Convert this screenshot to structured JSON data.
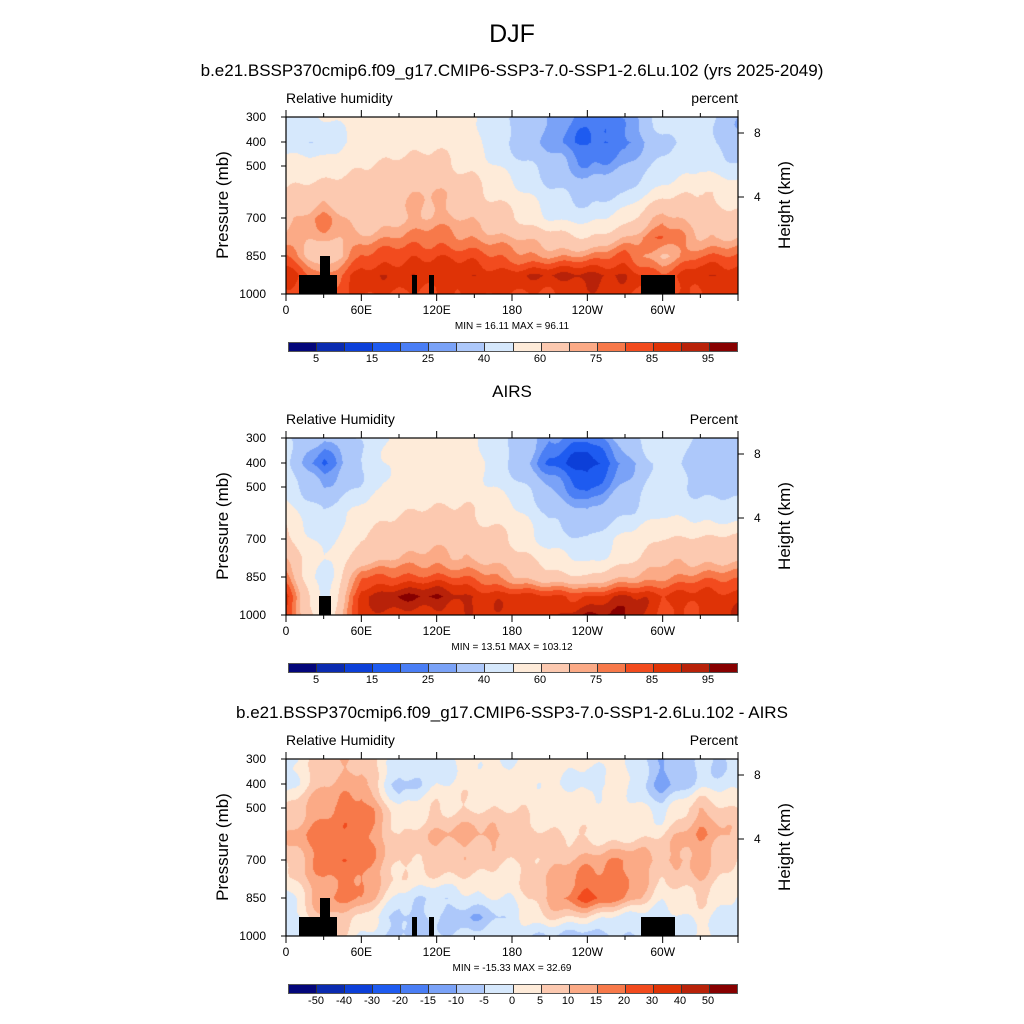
{
  "main_title": "DJF",
  "x_tick_labels": [
    "0",
    "60E",
    "120E",
    "180",
    "120W",
    "60W"
  ],
  "pressure_tick_labels": [
    "300",
    "400",
    "500",
    "700",
    "850",
    "1000"
  ],
  "height_tick_labels": [
    "8",
    "4"
  ],
  "ylabel": "Pressure (mb)",
  "y2label": "Height (km)",
  "chart_data": [
    {
      "type": "heatmap",
      "title": "b.e21.BSSP370cmip6.f09_g17.CMIP6-SSP3-7.0-SSP1-2.6Lu.102 (yrs 2025-2049)",
      "left_label": "Relative humidity",
      "right_label": "percent",
      "min_max": "MIN =  16.11  MAX =  96.11",
      "levels": [
        5,
        10,
        15,
        20,
        25,
        30,
        40,
        50,
        60,
        70,
        75,
        80,
        85,
        90,
        95
      ],
      "colorbar_labels": [
        [
          "5",
          1
        ],
        [
          "15",
          3
        ],
        [
          "25",
          5
        ],
        [
          "40",
          7
        ],
        [
          "60",
          9
        ],
        [
          "75",
          11
        ],
        [
          "85",
          13
        ],
        [
          "95",
          15
        ]
      ],
      "lon": [
        0,
        30,
        60,
        90,
        120,
        150,
        180,
        210,
        240,
        270,
        300,
        330,
        360
      ],
      "pressure": [
        300,
        400,
        500,
        600,
        700,
        775,
        850,
        925,
        1000
      ],
      "values": [
        [
          40,
          50,
          55,
          55,
          55,
          50,
          40,
          30,
          22,
          25,
          45,
          45,
          30
        ],
        [
          45,
          40,
          55,
          58,
          58,
          52,
          38,
          28,
          18,
          22,
          38,
          45,
          30
        ],
        [
          55,
          55,
          60,
          62,
          63,
          58,
          45,
          35,
          25,
          30,
          42,
          50,
          42
        ],
        [
          62,
          65,
          63,
          68,
          70,
          63,
          55,
          42,
          35,
          40,
          55,
          60,
          55
        ],
        [
          68,
          78,
          63,
          70,
          72,
          68,
          62,
          50,
          45,
          55,
          75,
          65,
          62
        ],
        [
          70,
          72,
          72,
          75,
          78,
          75,
          70,
          65,
          60,
          70,
          80,
          70,
          70
        ],
        [
          82,
          60,
          80,
          85,
          85,
          82,
          78,
          75,
          75,
          82,
          70,
          80,
          80
        ],
        [
          88,
          75,
          90,
          88,
          88,
          90,
          88,
          90,
          93,
          90,
          80,
          90,
          90
        ],
        [
          85,
          80,
          85,
          85,
          85,
          85,
          85,
          85,
          88,
          85,
          85,
          85,
          85
        ]
      ],
      "topography": [
        [
          10,
          41,
          925
        ],
        [
          27,
          35,
          850
        ],
        [
          100.5,
          104,
          925
        ],
        [
          114,
          117.5,
          925
        ],
        [
          282.5,
          309.5,
          925
        ]
      ]
    },
    {
      "type": "heatmap",
      "title": "AIRS",
      "left_label": "Relative Humidity",
      "right_label": "Percent",
      "min_max": "MIN =  13.51  MAX = 103.12",
      "levels": [
        5,
        10,
        15,
        20,
        25,
        30,
        40,
        50,
        60,
        70,
        75,
        80,
        85,
        90,
        95
      ],
      "colorbar_labels": [
        [
          "5",
          1
        ],
        [
          "15",
          3
        ],
        [
          "25",
          5
        ],
        [
          "40",
          7
        ],
        [
          "60",
          9
        ],
        [
          "75",
          11
        ],
        [
          "85",
          13
        ],
        [
          "95",
          15
        ]
      ],
      "lon": [
        0,
        30,
        60,
        90,
        120,
        150,
        180,
        210,
        240,
        270,
        300,
        330,
        360
      ],
      "pressure": [
        300,
        400,
        500,
        600,
        700,
        775,
        850,
        925,
        1000
      ],
      "values": [
        [
          40,
          30,
          42,
          55,
          55,
          52,
          40,
          25,
          20,
          35,
          50,
          38,
          30
        ],
        [
          42,
          18,
          40,
          55,
          58,
          55,
          38,
          20,
          10,
          25,
          45,
          35,
          30
        ],
        [
          45,
          30,
          42,
          55,
          55,
          55,
          45,
          30,
          18,
          32,
          45,
          38,
          35
        ],
        [
          55,
          40,
          55,
          60,
          62,
          60,
          55,
          38,
          30,
          40,
          48,
          45,
          45
        ],
        [
          62,
          45,
          60,
          65,
          67,
          65,
          60,
          45,
          40,
          52,
          62,
          62,
          62
        ],
        [
          68,
          50,
          65,
          70,
          72,
          70,
          65,
          55,
          48,
          55,
          68,
          68,
          68
        ],
        [
          78,
          40,
          80,
          82,
          82,
          78,
          72,
          65,
          60,
          70,
          75,
          78,
          78
        ],
        [
          85,
          45,
          90,
          95,
          95,
          90,
          88,
          85,
          85,
          92,
          85,
          88,
          88
        ],
        [
          85,
          50,
          88,
          88,
          88,
          88,
          88,
          88,
          95,
          95,
          85,
          85,
          90
        ]
      ],
      "topography": [
        [
          26.5,
          35.5,
          925
        ]
      ]
    },
    {
      "type": "heatmap",
      "title": "b.e21.BSSP370cmip6.f09_g17.CMIP6-SSP3-7.0-SSP1-2.6Lu.102 - AIRS",
      "left_label": "Relative Humidity",
      "right_label": "Percent",
      "min_max": "MIN = -15.33  MAX =  32.69",
      "levels": [
        -50,
        -40,
        -30,
        -20,
        -15,
        -10,
        -5,
        0,
        5,
        10,
        15,
        20,
        30,
        40,
        50
      ],
      "colorbar_labels": [
        [
          "-50",
          1
        ],
        [
          "-40",
          2
        ],
        [
          "-30",
          3
        ],
        [
          "-20",
          4
        ],
        [
          "-15",
          5
        ],
        [
          "-10",
          6
        ],
        [
          "-5",
          7
        ],
        [
          "0",
          8
        ],
        [
          "5",
          9
        ],
        [
          "10",
          10
        ],
        [
          "15",
          11
        ],
        [
          "20",
          12
        ],
        [
          "30",
          13
        ],
        [
          "40",
          14
        ],
        [
          "50",
          15
        ]
      ],
      "lon": [
        0,
        30,
        60,
        90,
        120,
        150,
        180,
        210,
        240,
        270,
        300,
        330,
        360
      ],
      "pressure": [
        300,
        400,
        500,
        600,
        700,
        775,
        850,
        925,
        1000
      ],
      "values": [
        [
          -3,
          8,
          10,
          -2,
          -3,
          2,
          0,
          2,
          2,
          2,
          -10,
          -5,
          -5
        ],
        [
          -2,
          10,
          12,
          -8,
          0,
          3,
          2,
          2,
          -3,
          2,
          -12,
          -3,
          -3
        ],
        [
          5,
          15,
          20,
          0,
          5,
          5,
          4,
          2,
          3,
          3,
          -3,
          10,
          5
        ],
        [
          10,
          18,
          18,
          5,
          10,
          12,
          10,
          5,
          3,
          2,
          5,
          15,
          8
        ],
        [
          5,
          18,
          18,
          5,
          8,
          8,
          5,
          8,
          12,
          15,
          10,
          12,
          3
        ],
        [
          2,
          15,
          17,
          3,
          3,
          5,
          2,
          10,
          18,
          18,
          4,
          10,
          3
        ],
        [
          -3,
          15,
          15,
          -2,
          -5,
          -2,
          0,
          12,
          22,
          15,
          2,
          5,
          -2
        ],
        [
          -5,
          10,
          5,
          -8,
          -5,
          -10,
          -3,
          5,
          5,
          -3,
          -5,
          2,
          -3
        ],
        [
          -3,
          10,
          -2,
          -5,
          -5,
          -3,
          -3,
          -5,
          -10,
          -5,
          -3,
          0,
          -3
        ]
      ],
      "topography": [
        [
          10,
          41,
          925
        ],
        [
          27,
          35,
          850
        ],
        [
          100.5,
          104,
          925
        ],
        [
          114,
          117.5,
          925
        ],
        [
          282.5,
          309.5,
          925
        ]
      ]
    }
  ],
  "colors": [
    "#03067a",
    "#0a2bb0",
    "#0c3fd8",
    "#1e5bf0",
    "#4a7ef5",
    "#7aa2f7",
    "#adc8fa",
    "#d6e8fc",
    "#feebd9",
    "#fcc9b0",
    "#fbaa86",
    "#f7794a",
    "#f24b1e",
    "#df3306",
    "#b82209",
    "#870000"
  ]
}
